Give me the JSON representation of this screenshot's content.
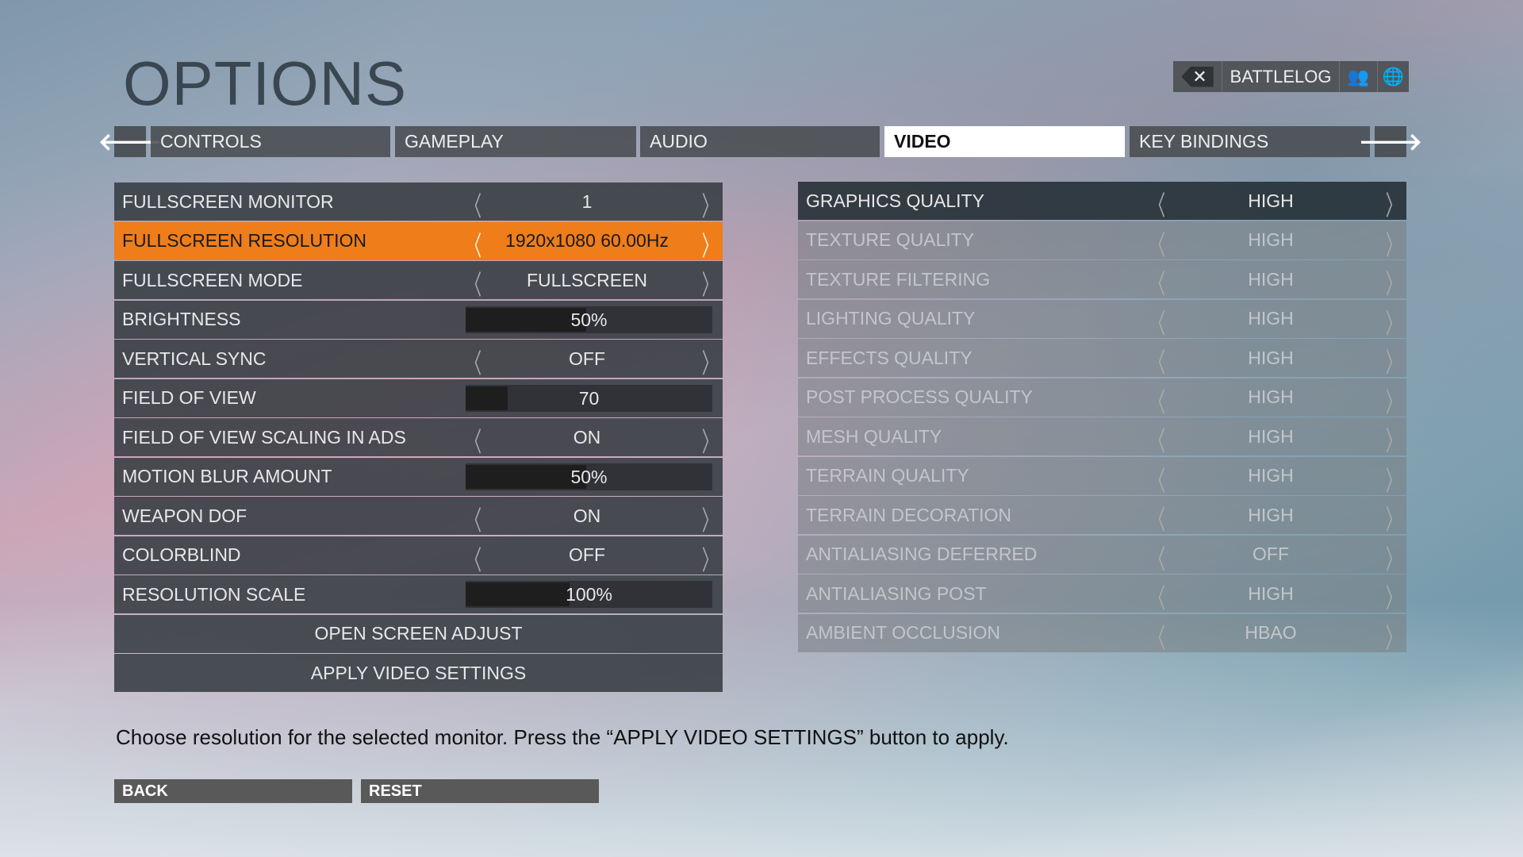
{
  "title": "OPTIONS",
  "battlelog": {
    "close_icon": "x-icon",
    "label": "BATTLELOG",
    "friends_icon": "friends-icon",
    "globe_icon": "globe-icon"
  },
  "tabs": [
    {
      "label": "CONTROLS"
    },
    {
      "label": "GAMEPLAY"
    },
    {
      "label": "AUDIO"
    },
    {
      "label": "VIDEO",
      "active": true
    },
    {
      "label": "KEY BINDINGS"
    }
  ],
  "nav": {
    "prev": "🡐",
    "next": "🡒"
  },
  "left_settings": [
    {
      "label": "FULLSCREEN MONITOR",
      "type": "select",
      "value": "1"
    },
    {
      "label": "FULLSCREEN RESOLUTION",
      "type": "select",
      "value": "1920x1080 60.00Hz",
      "selected": true
    },
    {
      "label": "FULLSCREEN MODE",
      "type": "select",
      "value": "FULLSCREEN"
    },
    {
      "label": "BRIGHTNESS",
      "type": "slider",
      "value": "50%",
      "fill": 0.49
    },
    {
      "label": "VERTICAL SYNC",
      "type": "select",
      "value": "OFF"
    },
    {
      "label": "FIELD OF VIEW",
      "type": "slider",
      "value": "70",
      "fill": 0.17
    },
    {
      "label": "FIELD OF VIEW SCALING IN ADS",
      "type": "select",
      "value": "ON"
    },
    {
      "label": "MOTION BLUR AMOUNT",
      "type": "slider",
      "value": "50%",
      "fill": 0.49
    },
    {
      "label": "WEAPON DOF",
      "type": "select",
      "value": "ON"
    },
    {
      "label": "COLORBLIND",
      "type": "select",
      "value": "OFF"
    },
    {
      "label": "RESOLUTION SCALE",
      "type": "slider",
      "value": "100%",
      "fill": 0.42
    }
  ],
  "actions": {
    "open_screen_adjust": "OPEN SCREEN ADJUST",
    "apply": "APPLY VIDEO SETTINGS"
  },
  "right_settings": [
    {
      "label": "GRAPHICS QUALITY",
      "value": "HIGH"
    },
    {
      "label": "TEXTURE QUALITY",
      "value": "HIGH"
    },
    {
      "label": "TEXTURE FILTERING",
      "value": "HIGH"
    },
    {
      "label": "LIGHTING QUALITY",
      "value": "HIGH"
    },
    {
      "label": "EFFECTS QUALITY",
      "value": "HIGH"
    },
    {
      "label": "POST PROCESS QUALITY",
      "value": "HIGH"
    },
    {
      "label": "MESH QUALITY",
      "value": "HIGH"
    },
    {
      "label": "TERRAIN QUALITY",
      "value": "HIGH"
    },
    {
      "label": "TERRAIN DECORATION",
      "value": "HIGH"
    },
    {
      "label": "ANTIALIASING DEFERRED",
      "value": "OFF"
    },
    {
      "label": "ANTIALIASING POST",
      "value": "HIGH"
    },
    {
      "label": "AMBIENT OCCLUSION",
      "value": "HBAO"
    }
  ],
  "chevrons": {
    "left": "〈",
    "right": "〉"
  },
  "help_text": "Choose resolution for the selected monitor. Press the “APPLY VIDEO SETTINGS” button to apply.",
  "footer": {
    "back": "BACK",
    "reset": "RESET"
  },
  "colors": {
    "accent": "#ef7d1a",
    "panel": "#373c42"
  }
}
